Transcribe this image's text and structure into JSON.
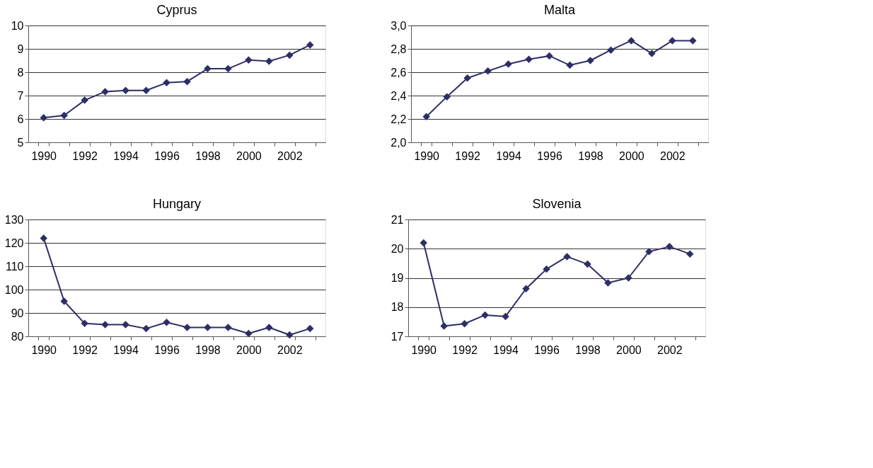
{
  "chart_data": [
    {
      "type": "line",
      "title": "Cyprus",
      "categories": [
        "1990",
        null,
        "1992",
        null,
        "1994",
        null,
        "1996",
        null,
        "1998",
        null,
        "2000",
        null,
        "2002",
        null
      ],
      "series": [
        {
          "color": "#2e2e66",
          "values": [
            6.05,
            6.15,
            6.8,
            7.17,
            7.22,
            7.22,
            7.55,
            7.6,
            8.15,
            8.15,
            8.52,
            8.47,
            8.73,
            9.17
          ]
        }
      ],
      "ylim": [
        5,
        10
      ],
      "yticks": [
        5,
        6,
        7,
        8,
        9,
        10
      ],
      "grid": "y",
      "marker": "diamond",
      "line_style": "solid"
    },
    {
      "type": "line",
      "title": "Malta",
      "categories": [
        "1990",
        null,
        "1992",
        null,
        "1994",
        null,
        "1996",
        null,
        "1998",
        null,
        "2000",
        null,
        "2002",
        null
      ],
      "series": [
        {
          "color": "#2e2e66",
          "values": [
            2.22,
            2.39,
            2.55,
            2.61,
            2.67,
            2.71,
            2.74,
            2.66,
            2.7,
            2.79,
            2.87,
            2.76,
            2.87,
            2.87
          ]
        }
      ],
      "ylim": [
        2.0,
        3.0
      ],
      "yticks": [
        {
          "value": 2.0,
          "label": "2,0"
        },
        {
          "value": 2.2,
          "label": "2,2"
        },
        {
          "value": 2.4,
          "label": "2,4"
        },
        {
          "value": 2.6,
          "label": "2,6"
        },
        {
          "value": 2.8,
          "label": "2,8"
        },
        {
          "value": 3.0,
          "label": "3,0"
        }
      ],
      "grid": "y",
      "marker": "diamond",
      "line_style": "solid"
    },
    {
      "type": "line",
      "title": "Hungary",
      "categories": [
        "1990",
        null,
        "1992",
        null,
        "1994",
        null,
        "1996",
        null,
        "1998",
        null,
        "2000",
        null,
        "2002",
        null
      ],
      "series": [
        {
          "color": "#2e2e66",
          "values": [
            122,
            95,
            85.5,
            85,
            85,
            83.3,
            86,
            83.8,
            83.8,
            83.8,
            81.2,
            83.8,
            80.6,
            83.3
          ]
        }
      ],
      "ylim": [
        80,
        130
      ],
      "yticks": [
        80,
        90,
        100,
        110,
        120,
        130
      ],
      "grid": "y",
      "marker": "diamond",
      "line_style": "solid"
    },
    {
      "type": "line",
      "title": "Slovenia",
      "categories": [
        "1990",
        null,
        "1992",
        null,
        "1994",
        null,
        "1996",
        null,
        "1998",
        null,
        "2000",
        null,
        "2002",
        null
      ],
      "series": [
        {
          "color": "#2e2e66",
          "values": [
            20.2,
            17.35,
            17.43,
            17.73,
            17.68,
            18.63,
            19.3,
            19.73,
            19.47,
            18.83,
            19.0,
            19.9,
            20.07,
            19.82
          ]
        }
      ],
      "ylim": [
        17,
        21
      ],
      "yticks": [
        17,
        18,
        19,
        20,
        21
      ],
      "grid": "y",
      "marker": "diamond",
      "line_style": "solid"
    }
  ]
}
